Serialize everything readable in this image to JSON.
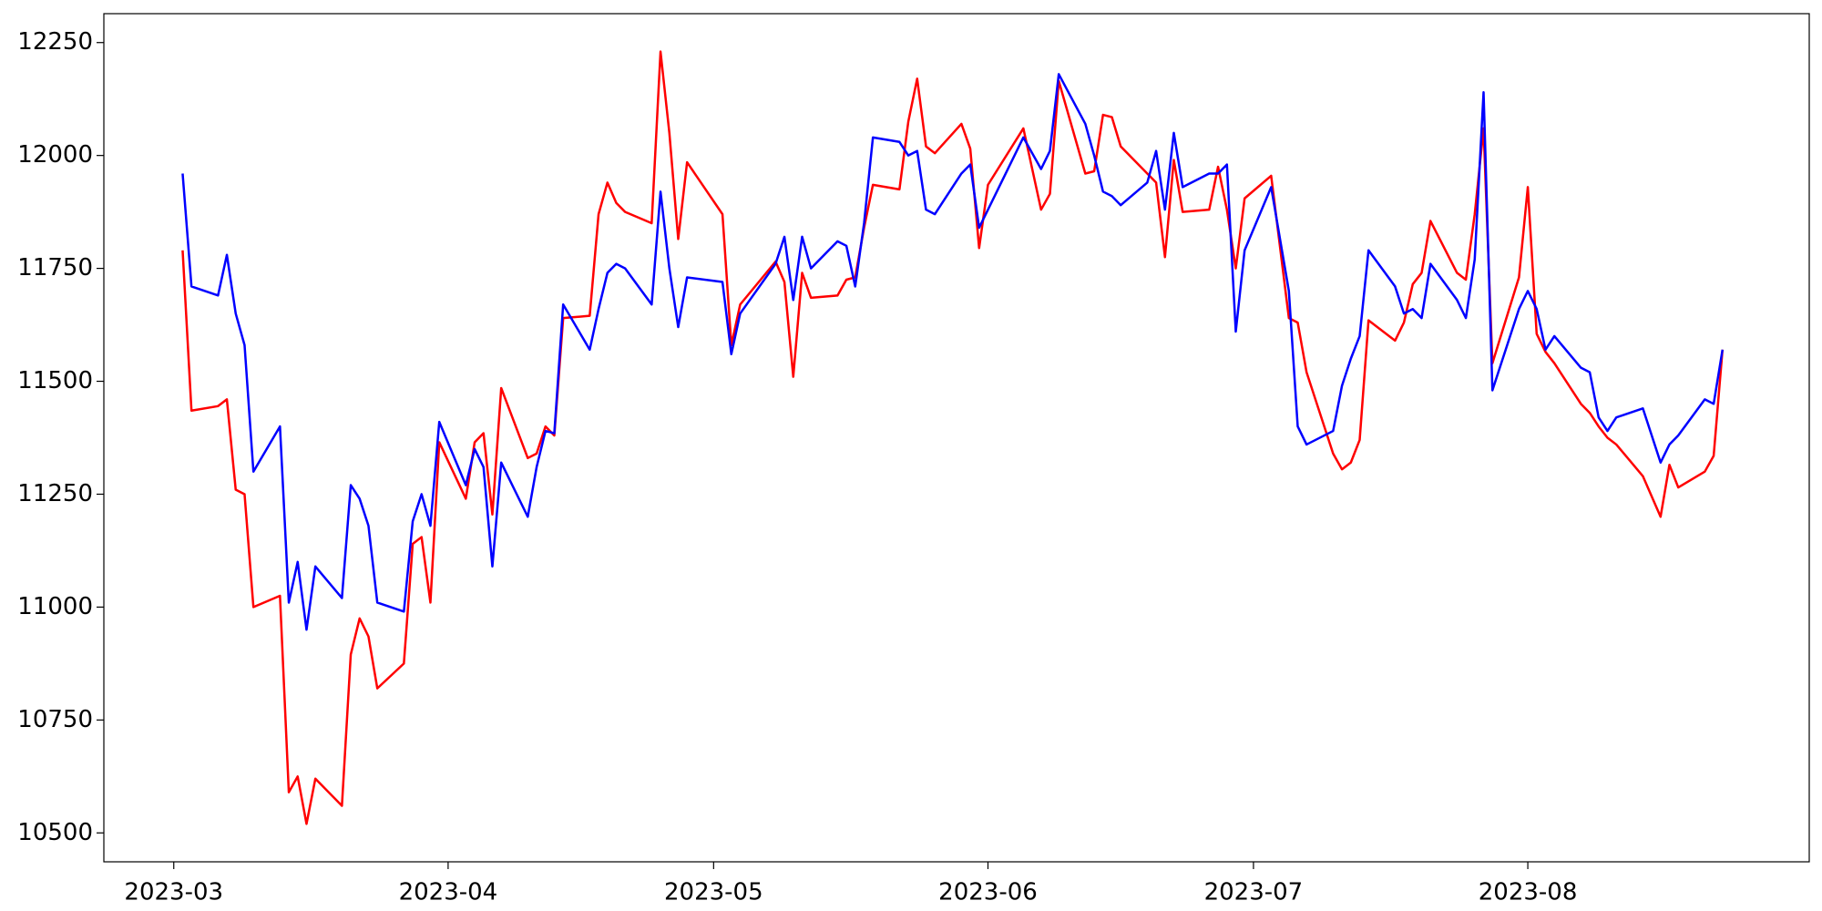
{
  "chart_data": {
    "type": "line",
    "x": [
      1,
      2,
      5,
      6,
      7,
      8,
      9,
      12,
      13,
      14,
      15,
      16,
      19,
      20,
      21,
      22,
      23,
      26,
      27,
      28,
      29,
      30,
      33,
      34,
      35,
      36,
      37,
      40,
      41,
      42,
      43,
      44,
      47,
      48,
      49,
      50,
      51,
      54,
      55,
      56,
      57,
      58,
      62,
      63,
      64,
      68,
      69,
      70,
      71,
      72,
      75,
      76,
      77,
      78,
      79,
      82,
      83,
      84,
      85,
      86,
      89,
      90,
      91,
      92,
      96,
      98,
      99,
      100,
      103,
      104,
      105,
      106,
      107,
      110,
      111,
      112,
      113,
      114,
      117,
      118,
      119,
      120,
      121,
      124,
      126,
      127,
      128,
      131,
      132,
      133,
      134,
      135,
      138,
      139,
      140,
      141,
      142,
      145,
      146,
      147,
      148,
      149,
      152,
      153,
      154,
      155,
      156,
      159,
      160,
      161,
      162,
      163,
      166,
      168,
      169,
      170,
      173,
      174,
      175
    ],
    "series": [
      {
        "color": "#ff0000",
        "values": [
          11790,
          11435,
          11445,
          11460,
          11260,
          11250,
          11000,
          11025,
          10590,
          10625,
          10520,
          10620,
          10560,
          10895,
          10975,
          10935,
          10820,
          10875,
          11140,
          11155,
          11010,
          11365,
          11240,
          11365,
          11385,
          11205,
          11485,
          11330,
          11340,
          11400,
          11380,
          11640,
          11645,
          11870,
          11940,
          11895,
          11875,
          11850,
          12230,
          12050,
          11815,
          11985,
          11870,
          11580,
          11670,
          11765,
          11720,
          11510,
          11740,
          11685,
          11690,
          11725,
          11730,
          11840,
          11935,
          11925,
          12075,
          12170,
          12020,
          12005,
          12070,
          12015,
          11795,
          11935,
          12060,
          11880,
          11915,
          12165,
          11960,
          11965,
          12090,
          12085,
          12020,
          11960,
          11940,
          11775,
          11990,
          11875,
          11880,
          11975,
          11880,
          11750,
          11905,
          11955,
          11640,
          11630,
          11520,
          11340,
          11305,
          11320,
          11370,
          11635,
          11590,
          11630,
          11715,
          11740,
          11855,
          11740,
          11725,
          11870,
          12060,
          11540,
          11730,
          11930,
          11605,
          11565,
          11540,
          11450,
          11430,
          11400,
          11375,
          11360,
          11290,
          11200,
          11315,
          11265,
          11300,
          11335,
          11570
        ]
      },
      {
        "color": "#0000ff",
        "values": [
          11960,
          11710,
          11690,
          11780,
          11650,
          11580,
          11300,
          11400,
          11010,
          11100,
          10950,
          11090,
          11020,
          11270,
          11240,
          11180,
          11010,
          10990,
          11190,
          11250,
          11180,
          11410,
          11270,
          11350,
          11310,
          11090,
          11320,
          11200,
          11310,
          11390,
          11385,
          11670,
          11570,
          11660,
          11740,
          11760,
          11750,
          11670,
          11920,
          11750,
          11620,
          11730,
          11720,
          11560,
          11650,
          11760,
          11820,
          11680,
          11820,
          11750,
          11810,
          11800,
          11710,
          11850,
          12040,
          12030,
          12000,
          12010,
          11880,
          11870,
          11960,
          11980,
          11840,
          11880,
          12040,
          11970,
          12010,
          12180,
          12070,
          12000,
          11920,
          11910,
          11890,
          11940,
          12010,
          11880,
          12050,
          11930,
          11960,
          11960,
          11980,
          11610,
          11790,
          11930,
          11700,
          11400,
          11360,
          11390,
          11490,
          11550,
          11600,
          11790,
          11710,
          11650,
          11660,
          11640,
          11760,
          11680,
          11640,
          11770,
          12140,
          11480,
          11660,
          11700,
          11660,
          11570,
          11600,
          11530,
          11520,
          11420,
          11390,
          11420,
          11440,
          11320,
          11360,
          11380,
          11460,
          11450,
          11570
        ]
      }
    ],
    "xlim": [
      -7.9,
      184.8
    ],
    "xticks": [
      {
        "value": 0,
        "label": "2023-03"
      },
      {
        "value": 31,
        "label": "2023-04"
      },
      {
        "value": 61,
        "label": "2023-05"
      },
      {
        "value": 92,
        "label": "2023-06"
      },
      {
        "value": 122,
        "label": "2023-07"
      },
      {
        "value": 153,
        "label": "2023-08"
      }
    ],
    "ylim": [
      10436,
      12314
    ],
    "yticks": [
      10500,
      10750,
      11000,
      11250,
      11500,
      11750,
      12000,
      12250
    ]
  }
}
